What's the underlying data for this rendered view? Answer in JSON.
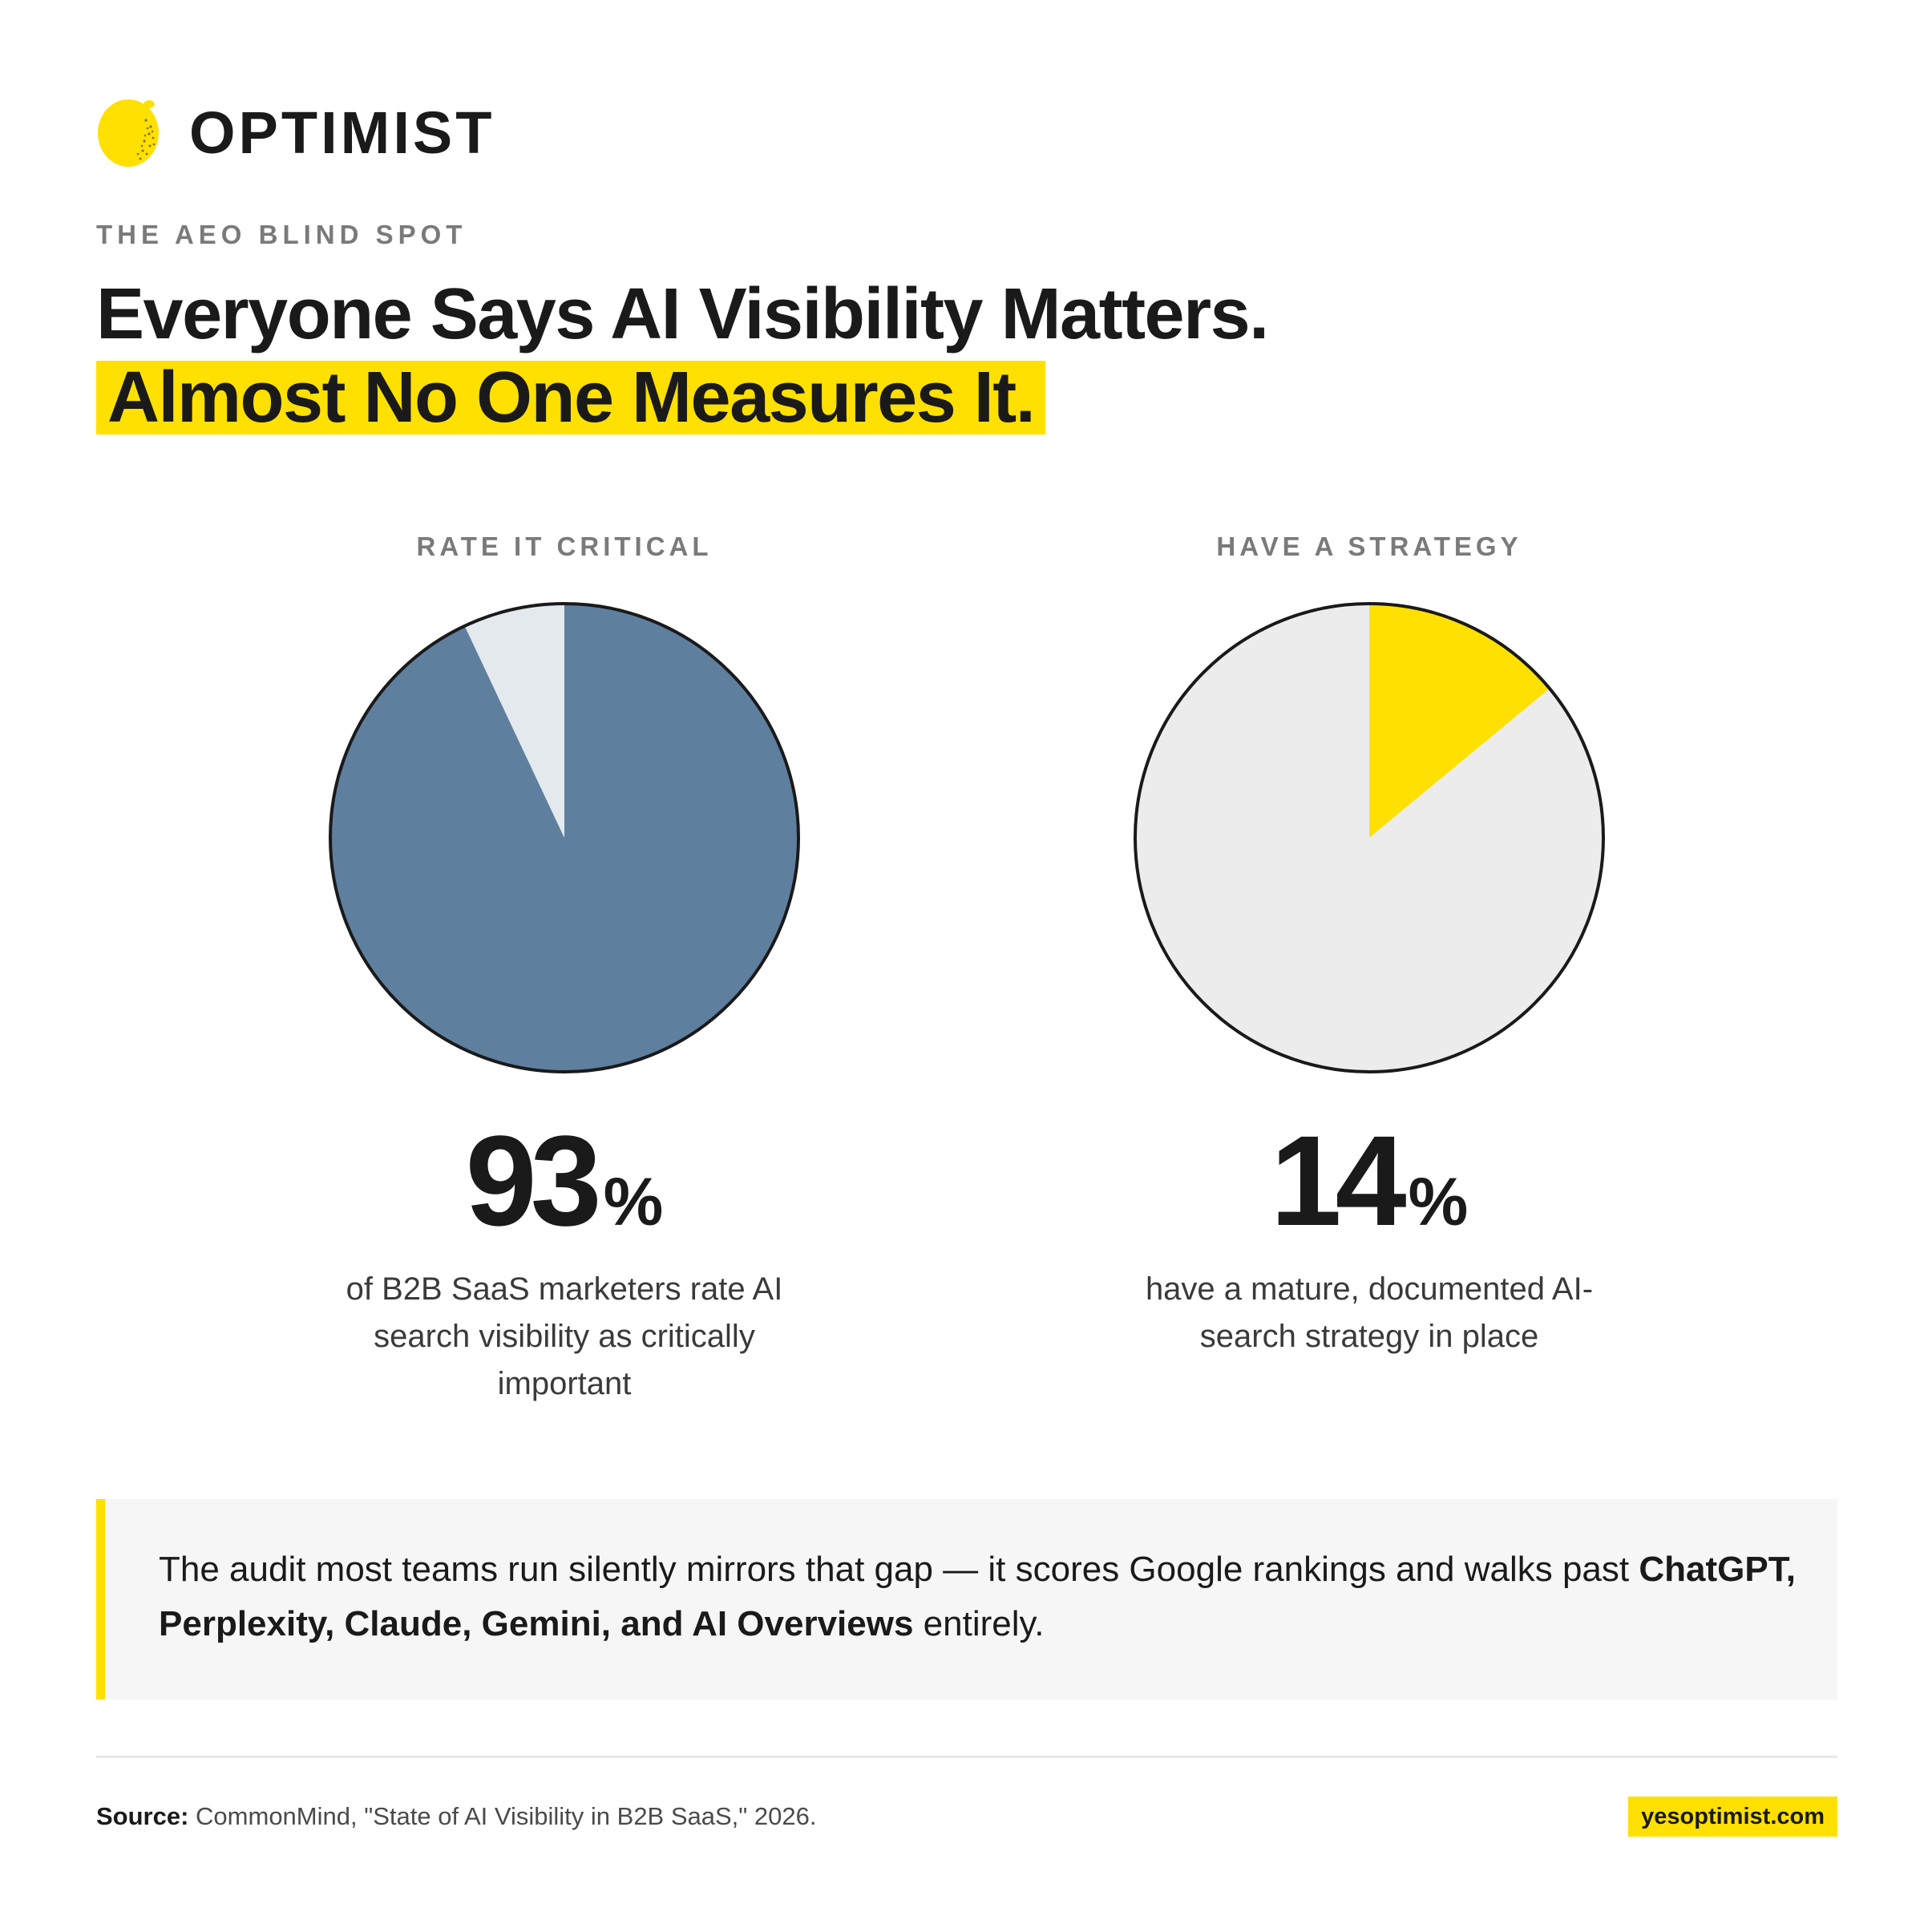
{
  "brand": {
    "name": "OPTIMIST",
    "logo_icon": "lemon-icon",
    "accent": "#ffe000"
  },
  "eyebrow": "THE AEO BLIND SPOT",
  "headline": {
    "line1": "Everyone Says AI Visibility Matters.",
    "line2": "Almost No One Measures It."
  },
  "chart_data": [
    {
      "type": "pie",
      "title": "RATE IT CRITICAL",
      "values": [
        93,
        7
      ],
      "colors": [
        "#5f7f9f",
        "#e4e9ee"
      ],
      "stat_number": "93",
      "stat_unit": "%",
      "caption": "of B2B SaaS marketers rate AI search visibility as critically important"
    },
    {
      "type": "pie",
      "title": "HAVE A STRATEGY",
      "values": [
        14,
        86
      ],
      "colors": [
        "#ffe000",
        "#ececec"
      ],
      "stat_number": "14",
      "stat_unit": "%",
      "caption": "have a mature, documented AI-search strategy in place"
    }
  ],
  "callout": {
    "text_before": "The audit most teams run silently mirrors that gap — it scores Google rankings and walks past ",
    "text_bold": "ChatGPT, Perplexity, Claude, Gemini, and AI Overviews",
    "text_after": " entirely."
  },
  "footer": {
    "source_label": "Source:",
    "source_text": "CommonMind, \"State of AI Visibility in B2B SaaS,\" 2026.",
    "url": "yesoptimist.com"
  }
}
